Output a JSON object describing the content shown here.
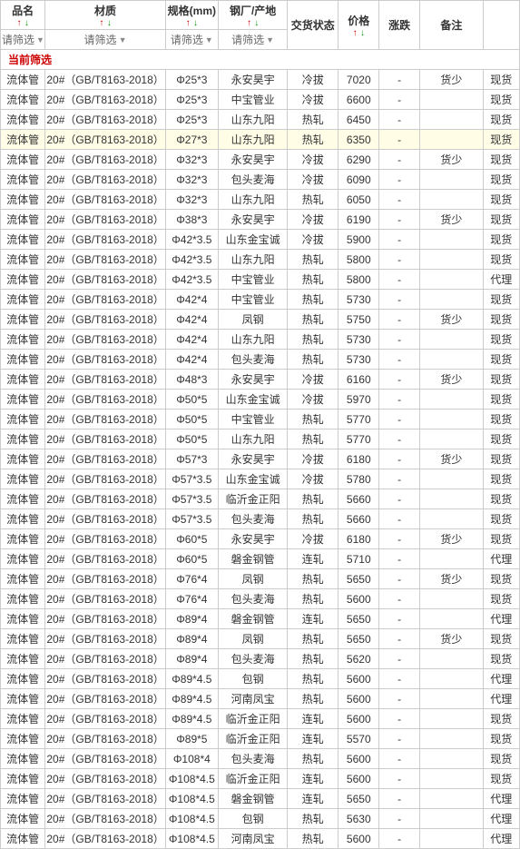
{
  "headers": {
    "name": "品名",
    "material": "材质",
    "spec": "规格(mm)",
    "factory": "钢厂/产地",
    "status": "交货状态",
    "price": "价格",
    "change": "涨跌",
    "note": "备注",
    "stock": ""
  },
  "filter_label": "请筛选",
  "current_filter_label": "当前筛选",
  "columns_with_sort": [
    "name",
    "material",
    "spec",
    "factory",
    "price"
  ],
  "columns_with_filter": [
    "name",
    "material",
    "spec",
    "factory"
  ],
  "phi": "Φ",
  "rows": [
    {
      "name": "流体管",
      "mat": "20#（GB/T8163-2018）",
      "spec": "25*3",
      "fact": "永安昊宇",
      "stat": "冷拔",
      "price": "7020",
      "chg": "-",
      "note": "货少",
      "stock": "现货",
      "hl": false
    },
    {
      "name": "流体管",
      "mat": "20#（GB/T8163-2018）",
      "spec": "25*3",
      "fact": "中宝管业",
      "stat": "冷拔",
      "price": "6600",
      "chg": "-",
      "note": "",
      "stock": "现货",
      "hl": false
    },
    {
      "name": "流体管",
      "mat": "20#（GB/T8163-2018）",
      "spec": "25*3",
      "fact": "山东九阳",
      "stat": "热轧",
      "price": "6450",
      "chg": "-",
      "note": "",
      "stock": "现货",
      "hl": false
    },
    {
      "name": "流体管",
      "mat": "20#（GB/T8163-2018）",
      "spec": "27*3",
      "fact": "山东九阳",
      "stat": "热轧",
      "price": "6350",
      "chg": "-",
      "note": "",
      "stock": "现货",
      "hl": true
    },
    {
      "name": "流体管",
      "mat": "20#（GB/T8163-2018）",
      "spec": "32*3",
      "fact": "永安昊宇",
      "stat": "冷拔",
      "price": "6290",
      "chg": "-",
      "note": "货少",
      "stock": "现货",
      "hl": false
    },
    {
      "name": "流体管",
      "mat": "20#（GB/T8163-2018）",
      "spec": "32*3",
      "fact": "包头麦海",
      "stat": "冷拔",
      "price": "6090",
      "chg": "-",
      "note": "",
      "stock": "现货",
      "hl": false
    },
    {
      "name": "流体管",
      "mat": "20#（GB/T8163-2018）",
      "spec": "32*3",
      "fact": "山东九阳",
      "stat": "热轧",
      "price": "6050",
      "chg": "-",
      "note": "",
      "stock": "现货",
      "hl": false
    },
    {
      "name": "流体管",
      "mat": "20#（GB/T8163-2018）",
      "spec": "38*3",
      "fact": "永安昊宇",
      "stat": "冷拔",
      "price": "6190",
      "chg": "-",
      "note": "货少",
      "stock": "现货",
      "hl": false
    },
    {
      "name": "流体管",
      "mat": "20#（GB/T8163-2018）",
      "spec": "42*3.5",
      "fact": "山东金宝诚",
      "stat": "冷拔",
      "price": "5900",
      "chg": "-",
      "note": "",
      "stock": "现货",
      "hl": false
    },
    {
      "name": "流体管",
      "mat": "20#（GB/T8163-2018）",
      "spec": "42*3.5",
      "fact": "山东九阳",
      "stat": "热轧",
      "price": "5800",
      "chg": "-",
      "note": "",
      "stock": "现货",
      "hl": false
    },
    {
      "name": "流体管",
      "mat": "20#（GB/T8163-2018）",
      "spec": "42*3.5",
      "fact": "中宝管业",
      "stat": "热轧",
      "price": "5800",
      "chg": "-",
      "note": "",
      "stock": "代理",
      "hl": false
    },
    {
      "name": "流体管",
      "mat": "20#（GB/T8163-2018）",
      "spec": "42*4",
      "fact": "中宝管业",
      "stat": "热轧",
      "price": "5730",
      "chg": "-",
      "note": "",
      "stock": "现货",
      "hl": false
    },
    {
      "name": "流体管",
      "mat": "20#（GB/T8163-2018）",
      "spec": "42*4",
      "fact": "凤钢",
      "stat": "热轧",
      "price": "5750",
      "chg": "-",
      "note": "货少",
      "stock": "现货",
      "hl": false
    },
    {
      "name": "流体管",
      "mat": "20#（GB/T8163-2018）",
      "spec": "42*4",
      "fact": "山东九阳",
      "stat": "热轧",
      "price": "5730",
      "chg": "-",
      "note": "",
      "stock": "现货",
      "hl": false
    },
    {
      "name": "流体管",
      "mat": "20#（GB/T8163-2018）",
      "spec": "42*4",
      "fact": "包头麦海",
      "stat": "热轧",
      "price": "5730",
      "chg": "-",
      "note": "",
      "stock": "现货",
      "hl": false
    },
    {
      "name": "流体管",
      "mat": "20#（GB/T8163-2018）",
      "spec": "48*3",
      "fact": "永安昊宇",
      "stat": "冷拔",
      "price": "6160",
      "chg": "-",
      "note": "货少",
      "stock": "现货",
      "hl": false
    },
    {
      "name": "流体管",
      "mat": "20#（GB/T8163-2018）",
      "spec": "50*5",
      "fact": "山东金宝诚",
      "stat": "冷拔",
      "price": "5970",
      "chg": "-",
      "note": "",
      "stock": "现货",
      "hl": false
    },
    {
      "name": "流体管",
      "mat": "20#（GB/T8163-2018）",
      "spec": "50*5",
      "fact": "中宝管业",
      "stat": "热轧",
      "price": "5770",
      "chg": "-",
      "note": "",
      "stock": "现货",
      "hl": false
    },
    {
      "name": "流体管",
      "mat": "20#（GB/T8163-2018）",
      "spec": "50*5",
      "fact": "山东九阳",
      "stat": "热轧",
      "price": "5770",
      "chg": "-",
      "note": "",
      "stock": "现货",
      "hl": false
    },
    {
      "name": "流体管",
      "mat": "20#（GB/T8163-2018）",
      "spec": "57*3",
      "fact": "永安昊宇",
      "stat": "冷拔",
      "price": "6180",
      "chg": "-",
      "note": "货少",
      "stock": "现货",
      "hl": false
    },
    {
      "name": "流体管",
      "mat": "20#（GB/T8163-2018）",
      "spec": "57*3.5",
      "fact": "山东金宝诚",
      "stat": "冷拔",
      "price": "5780",
      "chg": "-",
      "note": "",
      "stock": "现货",
      "hl": false
    },
    {
      "name": "流体管",
      "mat": "20#（GB/T8163-2018）",
      "spec": "57*3.5",
      "fact": "临沂金正阳",
      "stat": "热轧",
      "price": "5660",
      "chg": "-",
      "note": "",
      "stock": "现货",
      "hl": false
    },
    {
      "name": "流体管",
      "mat": "20#（GB/T8163-2018）",
      "spec": "57*3.5",
      "fact": "包头麦海",
      "stat": "热轧",
      "price": "5660",
      "chg": "-",
      "note": "",
      "stock": "现货",
      "hl": false
    },
    {
      "name": "流体管",
      "mat": "20#（GB/T8163-2018）",
      "spec": "60*5",
      "fact": "永安昊宇",
      "stat": "冷拔",
      "price": "6180",
      "chg": "-",
      "note": "货少",
      "stock": "现货",
      "hl": false
    },
    {
      "name": "流体管",
      "mat": "20#（GB/T8163-2018）",
      "spec": "60*5",
      "fact": "磐金钢管",
      "stat": "连轧",
      "price": "5710",
      "chg": "-",
      "note": "",
      "stock": "代理",
      "hl": false
    },
    {
      "name": "流体管",
      "mat": "20#（GB/T8163-2018）",
      "spec": "76*4",
      "fact": "凤钢",
      "stat": "热轧",
      "price": "5650",
      "chg": "-",
      "note": "货少",
      "stock": "现货",
      "hl": false
    },
    {
      "name": "流体管",
      "mat": "20#（GB/T8163-2018）",
      "spec": "76*4",
      "fact": "包头麦海",
      "stat": "热轧",
      "price": "5600",
      "chg": "-",
      "note": "",
      "stock": "现货",
      "hl": false
    },
    {
      "name": "流体管",
      "mat": "20#（GB/T8163-2018）",
      "spec": "89*4",
      "fact": "磐金钢管",
      "stat": "连轧",
      "price": "5650",
      "chg": "-",
      "note": "",
      "stock": "代理",
      "hl": false
    },
    {
      "name": "流体管",
      "mat": "20#（GB/T8163-2018）",
      "spec": "89*4",
      "fact": "凤钢",
      "stat": "热轧",
      "price": "5650",
      "chg": "-",
      "note": "货少",
      "stock": "现货",
      "hl": false
    },
    {
      "name": "流体管",
      "mat": "20#（GB/T8163-2018）",
      "spec": "89*4",
      "fact": "包头麦海",
      "stat": "热轧",
      "price": "5620",
      "chg": "-",
      "note": "",
      "stock": "现货",
      "hl": false
    },
    {
      "name": "流体管",
      "mat": "20#（GB/T8163-2018）",
      "spec": "89*4.5",
      "fact": "包钢",
      "stat": "热轧",
      "price": "5600",
      "chg": "-",
      "note": "",
      "stock": "代理",
      "hl": false
    },
    {
      "name": "流体管",
      "mat": "20#（GB/T8163-2018）",
      "spec": "89*4.5",
      "fact": "河南凤宝",
      "stat": "热轧",
      "price": "5600",
      "chg": "-",
      "note": "",
      "stock": "代理",
      "hl": false
    },
    {
      "name": "流体管",
      "mat": "20#（GB/T8163-2018）",
      "spec": "89*4.5",
      "fact": "临沂金正阳",
      "stat": "连轧",
      "price": "5600",
      "chg": "-",
      "note": "",
      "stock": "现货",
      "hl": false
    },
    {
      "name": "流体管",
      "mat": "20#（GB/T8163-2018）",
      "spec": "89*5",
      "fact": "临沂金正阳",
      "stat": "连轧",
      "price": "5570",
      "chg": "-",
      "note": "",
      "stock": "现货",
      "hl": false
    },
    {
      "name": "流体管",
      "mat": "20#（GB/T8163-2018）",
      "spec": "108*4",
      "fact": "包头麦海",
      "stat": "热轧",
      "price": "5600",
      "chg": "-",
      "note": "",
      "stock": "现货",
      "hl": false
    },
    {
      "name": "流体管",
      "mat": "20#（GB/T8163-2018）",
      "spec": "108*4.5",
      "fact": "临沂金正阳",
      "stat": "连轧",
      "price": "5600",
      "chg": "-",
      "note": "",
      "stock": "现货",
      "hl": false
    },
    {
      "name": "流体管",
      "mat": "20#（GB/T8163-2018）",
      "spec": "108*4.5",
      "fact": "磐金钢管",
      "stat": "连轧",
      "price": "5650",
      "chg": "-",
      "note": "",
      "stock": "代理",
      "hl": false
    },
    {
      "name": "流体管",
      "mat": "20#（GB/T8163-2018）",
      "spec": "108*4.5",
      "fact": "包钢",
      "stat": "热轧",
      "price": "5630",
      "chg": "-",
      "note": "",
      "stock": "代理",
      "hl": false
    },
    {
      "name": "流体管",
      "mat": "20#（GB/T8163-2018）",
      "spec": "108*4.5",
      "fact": "河南凤宝",
      "stat": "热轧",
      "price": "5600",
      "chg": "-",
      "note": "",
      "stock": "代理",
      "hl": false
    }
  ],
  "stock_class": {
    "现货": "stock-xianhuo",
    "代理": "stock-daili"
  }
}
